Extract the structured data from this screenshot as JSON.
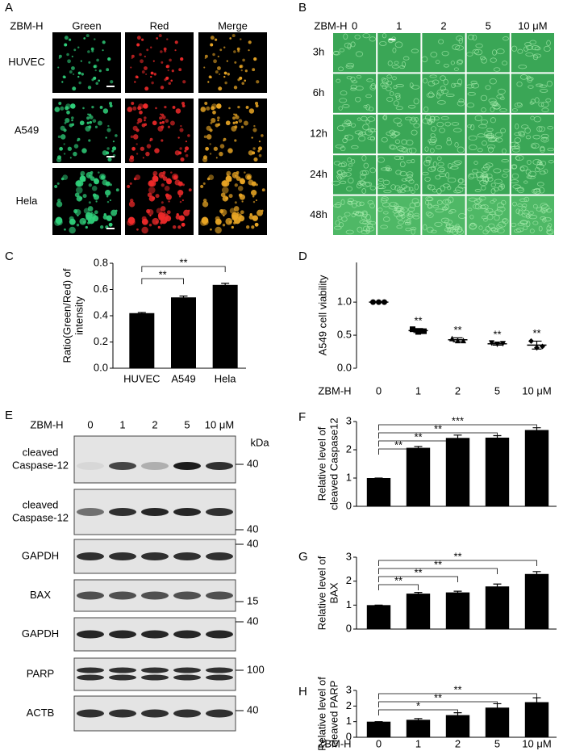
{
  "panel_a": {
    "panel": "A",
    "treatment": "ZBM-H",
    "channels": [
      "Green",
      "Red",
      "Merge"
    ],
    "cell_lines": [
      "HUVEC",
      "A549",
      "Hela"
    ]
  },
  "panel_b": {
    "panel": "B",
    "treatment": "ZBM-H",
    "doses": [
      "0",
      "1",
      "2",
      "5",
      "10 μM"
    ],
    "times": [
      "3h",
      "6h",
      "12h",
      "24h",
      "48h"
    ]
  },
  "panel_e": {
    "panel": "E",
    "treatment": "ZBM-H",
    "doses": [
      "0",
      "1",
      "2",
      "5",
      "10 μM"
    ],
    "unit": "kDa",
    "blots": [
      {
        "label": [
          "cleaved",
          "Caspase-12"
        ],
        "marker": 40
      },
      {
        "label": [
          "cleaved",
          "Caspase-12"
        ],
        "marker": 40
      },
      {
        "label": [
          "GAPDH"
        ],
        "marker": 40
      },
      {
        "label": [
          "BAX"
        ],
        "marker": 15
      },
      {
        "label": [
          "GAPDH"
        ],
        "marker": 40
      },
      {
        "label": [
          "PARP"
        ],
        "marker": 100
      },
      {
        "label": [
          "ACTB"
        ],
        "marker": 40
      }
    ]
  },
  "chart_data": [
    {
      "panel": "C",
      "type": "bar",
      "color": "#000000",
      "categories": [
        "HUVEC",
        "A549",
        "Hela"
      ],
      "values": [
        0.42,
        0.54,
        0.635
      ],
      "errors": [
        0.005,
        0.01,
        0.012
      ],
      "y_label": [
        "Ratio(Green/Red) of",
        "intensity"
      ],
      "ylim": [
        0,
        0.8
      ],
      "yticks": [
        {
          "value": 0,
          "label": "0.0"
        },
        0.2,
        0.4,
        0.6,
        0.8
      ],
      "significance": [
        null,
        "**",
        "**"
      ]
    },
    {
      "panel": "D",
      "type": "dot",
      "color": "#000000",
      "x_label": "ZBM-H",
      "categories": [
        "0",
        "1",
        "2",
        "5",
        "10 μM"
      ],
      "values": [
        1.0,
        0.57,
        0.43,
        0.37,
        0.35
      ],
      "errors": [
        0,
        0.03,
        0.03,
        0.02,
        0.06
      ],
      "points": [
        [
          1.0,
          1.0,
          1.0
        ],
        [
          0.59,
          0.55,
          0.56
        ],
        [
          0.45,
          0.42,
          0.42
        ],
        [
          0.38,
          0.36,
          0.37
        ],
        [
          0.41,
          0.31,
          0.33
        ]
      ],
      "y_label": [
        "A549 cell viability"
      ],
      "ylim": [
        0,
        1.6
      ],
      "yticks": [
        {
          "value": 0,
          "label": "0.0"
        },
        0.5,
        {
          "value": 1,
          "label": "1.0"
        }
      ],
      "significance": [
        null,
        "**",
        "**",
        "**",
        "**"
      ]
    },
    {
      "panel": "F",
      "type": "bar",
      "color": "#000000",
      "categories": [
        null,
        null,
        null,
        null,
        null
      ],
      "values": [
        1,
        2.07,
        2.42,
        2.43,
        2.7
      ],
      "errors": [
        0,
        0.05,
        0.1,
        0.07,
        0.08
      ],
      "y_label": [
        "Relative level of",
        "cleaved Caspase12"
      ],
      "ylim": [
        0,
        3
      ],
      "yticks": [
        0,
        1,
        2,
        3
      ],
      "significance": [
        null,
        "**",
        "**",
        "**",
        "***"
      ]
    },
    {
      "panel": "G",
      "type": "bar",
      "color": "#000000",
      "categories": [
        null,
        null,
        null,
        null,
        null
      ],
      "values": [
        1,
        1.48,
        1.53,
        1.78,
        2.3
      ],
      "errors": [
        0,
        0.05,
        0.05,
        0.1,
        0.1
      ],
      "y_label": [
        "Relative level of",
        "BAX"
      ],
      "ylim": [
        0,
        3
      ],
      "yticks": [
        0,
        1,
        2,
        3
      ],
      "significance": [
        null,
        "**",
        "**",
        "**",
        "**"
      ]
    },
    {
      "panel": "H",
      "type": "bar",
      "color": "#000000",
      "x_label": "ZBM-H",
      "categories": [
        "0",
        "1",
        "2",
        "5",
        "10 μM"
      ],
      "values": [
        1,
        1.12,
        1.42,
        1.9,
        2.25
      ],
      "errors": [
        0,
        0.08,
        0.15,
        0.25,
        0.28
      ],
      "y_label": [
        "Relative level of",
        "cleaved PARP"
      ],
      "ylim": [
        0,
        3
      ],
      "yticks": [
        0,
        1,
        2,
        3
      ],
      "significance": [
        null,
        null,
        "*",
        "**",
        "**"
      ]
    }
  ]
}
